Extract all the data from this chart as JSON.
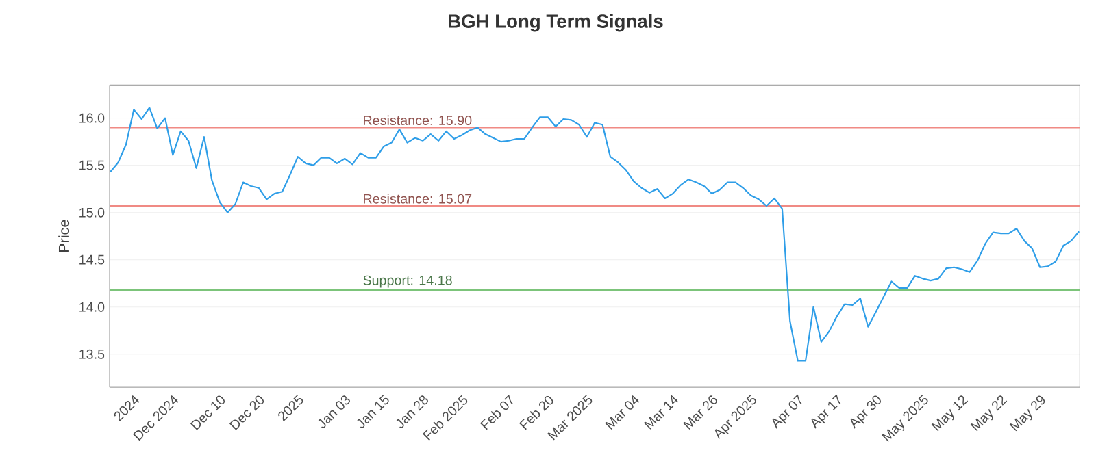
{
  "chart_data": {
    "type": "line",
    "title": "BGH Long Term Signals",
    "ylabel": "Price",
    "categories": [
      null,
      null,
      null,
      "2024",
      null,
      null,
      null,
      null,
      "Dec 2024",
      null,
      null,
      null,
      null,
      null,
      "Dec 10",
      null,
      null,
      null,
      null,
      "Dec 20",
      null,
      null,
      null,
      null,
      "2025",
      null,
      null,
      null,
      null,
      null,
      "Jan 03",
      null,
      null,
      null,
      null,
      "Jan 15",
      null,
      null,
      null,
      null,
      "Jan 28",
      null,
      null,
      null,
      null,
      "Feb 2025",
      null,
      null,
      null,
      null,
      null,
      "Feb 07",
      null,
      null,
      null,
      null,
      "Feb 20",
      null,
      null,
      null,
      null,
      "Mar 2025",
      null,
      null,
      null,
      null,
      null,
      "Mar 04",
      null,
      null,
      null,
      null,
      "Mar 14",
      null,
      null,
      null,
      null,
      "Mar 26",
      null,
      null,
      null,
      null,
      "Apr 2025",
      null,
      null,
      null,
      null,
      null,
      "Apr 07",
      null,
      null,
      null,
      null,
      "Apr 17",
      null,
      null,
      null,
      null,
      "Apr 30",
      null,
      null,
      null,
      null,
      null,
      "May 2025",
      null,
      null,
      null,
      null,
      "May 12",
      null,
      null,
      null,
      null,
      "May 22",
      null,
      null,
      null,
      null,
      "May 29",
      null,
      null,
      null,
      null,
      null
    ],
    "series": [
      {
        "color": "#2f9ee8",
        "values": [
          15.43,
          15.53,
          15.72,
          16.09,
          15.99,
          16.11,
          15.89,
          16.0,
          15.61,
          15.86,
          15.76,
          15.47,
          15.8,
          15.34,
          15.11,
          15.0,
          15.09,
          15.32,
          15.28,
          15.26,
          15.14,
          15.2,
          15.22,
          15.4,
          15.59,
          15.52,
          15.5,
          15.58,
          15.58,
          15.52,
          15.57,
          15.51,
          15.63,
          15.58,
          15.58,
          15.7,
          15.74,
          15.88,
          15.74,
          15.79,
          15.76,
          15.83,
          15.76,
          15.86,
          15.78,
          15.82,
          15.87,
          15.9,
          15.83,
          15.79,
          15.75,
          15.76,
          15.78,
          15.78,
          15.9,
          16.01,
          16.01,
          15.91,
          15.99,
          15.98,
          15.93,
          15.8,
          15.95,
          15.93,
          15.59,
          15.53,
          15.45,
          15.33,
          15.26,
          15.21,
          15.25,
          15.15,
          15.2,
          15.29,
          15.35,
          15.32,
          15.28,
          15.2,
          15.24,
          15.32,
          15.32,
          15.26,
          15.18,
          15.14,
          15.07,
          15.15,
          15.04,
          13.85,
          13.43,
          13.43,
          14.0,
          13.63,
          13.74,
          13.9,
          14.03,
          14.02,
          14.09,
          13.79,
          13.95,
          14.11,
          14.27,
          14.2,
          14.2,
          14.33,
          14.3,
          14.28,
          14.3,
          14.41,
          14.42,
          14.4,
          14.37,
          14.49,
          14.67,
          14.79,
          14.78,
          14.78,
          14.83,
          14.7,
          14.62,
          14.42,
          14.43,
          14.48,
          14.65,
          14.7,
          14.8
        ]
      }
    ],
    "ylim": [
      13.15,
      16.35
    ],
    "yticks": [
      {
        "value": 13.5,
        "label": "13.5"
      },
      {
        "value": 14.0,
        "label": "14.0"
      },
      {
        "value": 14.5,
        "label": "14.5"
      },
      {
        "value": 15.0,
        "label": "15.0"
      },
      {
        "value": 15.5,
        "label": "15.5"
      },
      {
        "value": 16.0,
        "label": "16.0"
      }
    ],
    "grid": "y",
    "marker": "none",
    "line_style": "solid",
    "ref_lines": [
      {
        "axis": "y",
        "value": 15.9,
        "label": "Resistance: 15.90",
        "color": "#f08a84"
      },
      {
        "axis": "y",
        "value": 15.07,
        "label": "Resistance: 15.07",
        "color": "#f08a84"
      },
      {
        "axis": "y",
        "value": 14.18,
        "label": "Support: 14.18",
        "color": "#7cc47a"
      }
    ]
  }
}
